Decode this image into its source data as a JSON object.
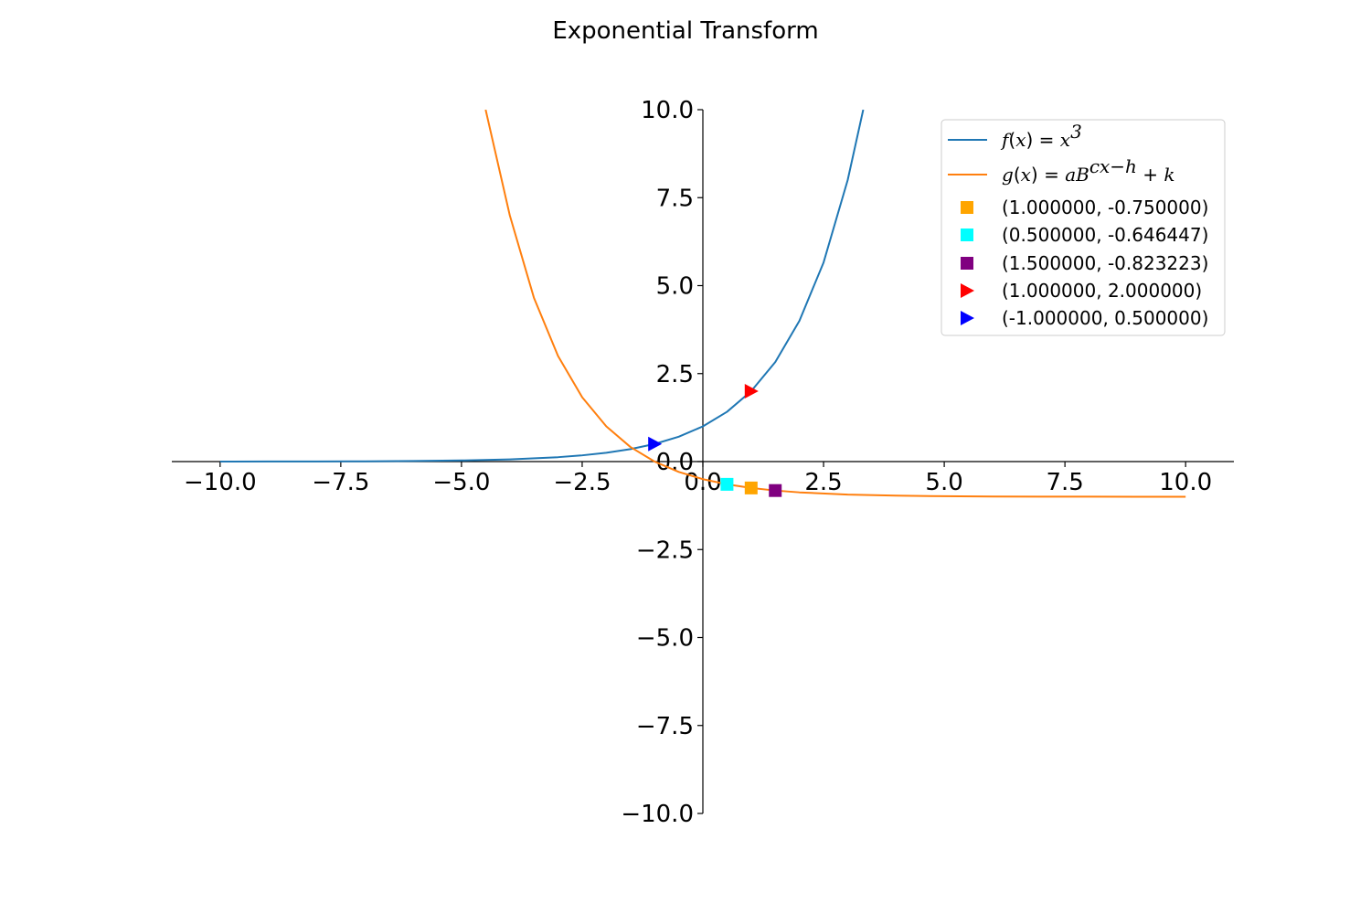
{
  "chart_data": {
    "type": "line",
    "title": "Exponential Transform",
    "xlabel": "",
    "ylabel": "",
    "xlim": [
      -11,
      11
    ],
    "ylim": [
      -10,
      10
    ],
    "grid": false,
    "spines": "centered-at-origin",
    "legend_position": "upper-right",
    "x_ticks": [
      -10,
      -7.5,
      -5,
      -2.5,
      0,
      2.5,
      5,
      7.5,
      10
    ],
    "x_tick_labels": [
      "−10.0",
      "−7.5",
      "−5.0",
      "−2.5",
      "0.0",
      "2.5",
      "5.0",
      "7.5",
      "10.0"
    ],
    "y_ticks": [
      -10,
      -7.5,
      -5,
      -2.5,
      0,
      2.5,
      5,
      7.5,
      10
    ],
    "y_tick_labels": [
      "−10.0",
      "−7.5",
      "−5.0",
      "−2.5",
      "0.0",
      "2.5",
      "5.0",
      "7.5",
      "10.0"
    ],
    "series": [
      {
        "name": "f(x) = x^3",
        "legend_label": {
          "parts": [
            [
              "f",
              true
            ],
            [
              "(",
              false
            ],
            [
              "x",
              true
            ],
            [
              ") = ",
              false
            ],
            [
              "x",
              true
            ]
          ],
          "sup": "3"
        },
        "color": "#1f77b4",
        "x": [
          -10,
          -9,
          -8,
          -7,
          -6,
          -5,
          -4,
          -3,
          -2.5,
          -2,
          -1.5,
          -1,
          -0.5,
          0,
          0.5,
          1,
          1.5,
          2,
          2.5,
          3,
          3.322
        ],
        "y": [
          0.001,
          0.002,
          0.004,
          0.008,
          0.016,
          0.031,
          0.063,
          0.125,
          0.177,
          0.25,
          0.354,
          0.5,
          0.707,
          1,
          1.414,
          2,
          2.828,
          4,
          5.657,
          8,
          10
        ]
      },
      {
        "name": "g(x) = aB^{cx-h} + k",
        "legend_label": {
          "parts": [
            [
              "g",
              true
            ],
            [
              "(",
              false
            ],
            [
              "x",
              true
            ],
            [
              ") = ",
              false
            ],
            [
              "aB",
              true
            ]
          ],
          "sup": "cx−h",
          "tail": [
            [
              " + ",
              false
            ],
            [
              "k",
              true
            ]
          ]
        },
        "color": "#ff7f0e",
        "x": [
          -4.5,
          -4,
          -3.5,
          -3,
          -2.5,
          -2,
          -1.5,
          -1,
          -0.5,
          0,
          0.5,
          1,
          1.5,
          2,
          3,
          4,
          5,
          6,
          7,
          8,
          9,
          10
        ],
        "y": [
          10.0,
          7.0,
          4.657,
          3.0,
          1.828,
          1.0,
          0.414,
          0.0,
          -0.293,
          -0.5,
          -0.646,
          -0.75,
          -0.823,
          -0.875,
          -0.938,
          -0.969,
          -0.984,
          -0.992,
          -0.996,
          -0.998,
          -0.999,
          -1.0
        ]
      }
    ],
    "markers": [
      {
        "label": "(1.000000, -0.750000)",
        "x": 1.0,
        "y": -0.75,
        "shape": "square",
        "color": "#ffa500"
      },
      {
        "label": "(0.500000, -0.646447)",
        "x": 0.5,
        "y": -0.646447,
        "shape": "square",
        "color": "#00ffff"
      },
      {
        "label": "(1.500000, -0.823223)",
        "x": 1.5,
        "y": -0.823223,
        "shape": "square",
        "color": "#800080"
      },
      {
        "label": "(1.000000, 2.000000)",
        "x": 1.0,
        "y": 2.0,
        "shape": "triangle-right",
        "color": "#ff0000"
      },
      {
        "label": "(-1.000000, 0.500000)",
        "x": -1.0,
        "y": 0.5,
        "shape": "triangle-right",
        "color": "#0000ff"
      }
    ]
  }
}
